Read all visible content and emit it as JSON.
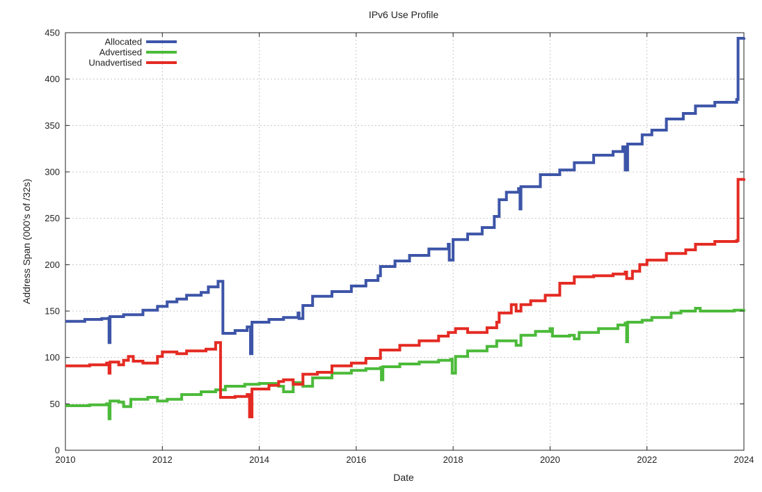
{
  "chart_data": {
    "type": "line",
    "title": "IPv6 Use Profile",
    "xlabel": "Date",
    "ylabel": "Address Span (000's of /32s)",
    "xlim": [
      2010,
      2024
    ],
    "ylim": [
      0,
      450
    ],
    "x_ticks": [
      "2010",
      "2012",
      "2014",
      "2016",
      "2018",
      "2020",
      "2022",
      "2024"
    ],
    "y_ticks": [
      "0",
      "50",
      "100",
      "150",
      "200",
      "250",
      "300",
      "350",
      "400",
      "450"
    ],
    "grid": true,
    "legend_position": "top-left",
    "series": [
      {
        "name": "Allocated",
        "color": "#3d55a8",
        "points": [
          [
            2010.0,
            139
          ],
          [
            2010.4,
            141
          ],
          [
            2010.75,
            142
          ],
          [
            2010.9,
            144
          ],
          [
            2010.9,
            116
          ],
          [
            2010.92,
            144
          ],
          [
            2011.2,
            146
          ],
          [
            2011.6,
            151
          ],
          [
            2011.9,
            155
          ],
          [
            2012.1,
            160
          ],
          [
            2012.3,
            163
          ],
          [
            2012.5,
            167
          ],
          [
            2012.8,
            170
          ],
          [
            2012.95,
            176
          ],
          [
            2013.15,
            182
          ],
          [
            2013.25,
            126
          ],
          [
            2013.5,
            129
          ],
          [
            2013.75,
            133
          ],
          [
            2013.82,
            104
          ],
          [
            2013.85,
            138
          ],
          [
            2014.2,
            141
          ],
          [
            2014.5,
            143
          ],
          [
            2014.8,
            148
          ],
          [
            2014.82,
            142
          ],
          [
            2014.9,
            156
          ],
          [
            2015.1,
            166
          ],
          [
            2015.5,
            171
          ],
          [
            2015.9,
            177
          ],
          [
            2016.2,
            183
          ],
          [
            2016.45,
            188
          ],
          [
            2016.5,
            198
          ],
          [
            2016.8,
            204
          ],
          [
            2017.1,
            210
          ],
          [
            2017.5,
            217
          ],
          [
            2017.9,
            222
          ],
          [
            2017.92,
            205
          ],
          [
            2018.0,
            227
          ],
          [
            2018.3,
            233
          ],
          [
            2018.6,
            240
          ],
          [
            2018.85,
            252
          ],
          [
            2018.95,
            270
          ],
          [
            2019.1,
            278
          ],
          [
            2019.35,
            282
          ],
          [
            2019.38,
            260
          ],
          [
            2019.4,
            284
          ],
          [
            2019.8,
            297
          ],
          [
            2020.2,
            302
          ],
          [
            2020.5,
            310
          ],
          [
            2020.9,
            318
          ],
          [
            2021.3,
            322
          ],
          [
            2021.5,
            327
          ],
          [
            2021.55,
            302
          ],
          [
            2021.6,
            330
          ],
          [
            2021.9,
            340
          ],
          [
            2022.1,
            345
          ],
          [
            2022.4,
            357
          ],
          [
            2022.75,
            363
          ],
          [
            2023.0,
            371
          ],
          [
            2023.4,
            375
          ],
          [
            2023.85,
            378
          ],
          [
            2023.88,
            444
          ],
          [
            2024.0,
            445
          ]
        ]
      },
      {
        "name": "Advertised",
        "color": "#4cba3a",
        "points": [
          [
            2010.0,
            48
          ],
          [
            2010.5,
            49
          ],
          [
            2010.85,
            50
          ],
          [
            2010.9,
            34
          ],
          [
            2010.92,
            53
          ],
          [
            2011.1,
            52
          ],
          [
            2011.2,
            47
          ],
          [
            2011.35,
            55
          ],
          [
            2011.7,
            57
          ],
          [
            2011.9,
            53
          ],
          [
            2012.1,
            55
          ],
          [
            2012.4,
            60
          ],
          [
            2012.8,
            63
          ],
          [
            2013.1,
            65
          ],
          [
            2013.3,
            69
          ],
          [
            2013.7,
            71
          ],
          [
            2014.0,
            72
          ],
          [
            2014.4,
            69
          ],
          [
            2014.5,
            63
          ],
          [
            2014.7,
            73
          ],
          [
            2014.9,
            69
          ],
          [
            2015.1,
            78
          ],
          [
            2015.5,
            83
          ],
          [
            2015.9,
            86
          ],
          [
            2016.2,
            88
          ],
          [
            2016.5,
            89
          ],
          [
            2016.52,
            76
          ],
          [
            2016.55,
            90
          ],
          [
            2016.9,
            93
          ],
          [
            2017.3,
            95
          ],
          [
            2017.7,
            97
          ],
          [
            2017.95,
            98
          ],
          [
            2017.98,
            83
          ],
          [
            2018.05,
            101
          ],
          [
            2018.3,
            107
          ],
          [
            2018.7,
            112
          ],
          [
            2018.9,
            118
          ],
          [
            2019.1,
            118
          ],
          [
            2019.3,
            113
          ],
          [
            2019.4,
            124
          ],
          [
            2019.7,
            128
          ],
          [
            2020.0,
            131
          ],
          [
            2020.05,
            123
          ],
          [
            2020.4,
            124
          ],
          [
            2020.5,
            120
          ],
          [
            2020.6,
            127
          ],
          [
            2021.0,
            131
          ],
          [
            2021.4,
            135
          ],
          [
            2021.55,
            137
          ],
          [
            2021.58,
            117
          ],
          [
            2021.6,
            138
          ],
          [
            2021.9,
            140
          ],
          [
            2022.1,
            143
          ],
          [
            2022.5,
            148
          ],
          [
            2022.7,
            150
          ],
          [
            2023.0,
            153
          ],
          [
            2023.1,
            150
          ],
          [
            2023.4,
            150
          ],
          [
            2023.8,
            151
          ],
          [
            2024.0,
            152
          ]
        ]
      },
      {
        "name": "Unadvertised",
        "color": "#e42b23",
        "points": [
          [
            2010.0,
            91
          ],
          [
            2010.5,
            92
          ],
          [
            2010.85,
            94
          ],
          [
            2010.9,
            83
          ],
          [
            2010.92,
            95
          ],
          [
            2011.1,
            92
          ],
          [
            2011.2,
            97
          ],
          [
            2011.3,
            101
          ],
          [
            2011.4,
            96
          ],
          [
            2011.6,
            94
          ],
          [
            2011.9,
            101
          ],
          [
            2012.0,
            106
          ],
          [
            2012.3,
            104
          ],
          [
            2012.5,
            107
          ],
          [
            2012.9,
            109
          ],
          [
            2013.1,
            116
          ],
          [
            2013.2,
            57
          ],
          [
            2013.5,
            58
          ],
          [
            2013.75,
            60
          ],
          [
            2013.8,
            36
          ],
          [
            2013.85,
            66
          ],
          [
            2014.2,
            70
          ],
          [
            2014.4,
            74
          ],
          [
            2014.5,
            76
          ],
          [
            2014.7,
            71
          ],
          [
            2014.9,
            82
          ],
          [
            2015.2,
            84
          ],
          [
            2015.5,
            91
          ],
          [
            2015.9,
            94
          ],
          [
            2016.2,
            99
          ],
          [
            2016.5,
            108
          ],
          [
            2016.9,
            113
          ],
          [
            2017.3,
            118
          ],
          [
            2017.7,
            123
          ],
          [
            2017.9,
            127
          ],
          [
            2018.05,
            131
          ],
          [
            2018.3,
            127
          ],
          [
            2018.7,
            132
          ],
          [
            2018.9,
            138
          ],
          [
            2018.95,
            148
          ],
          [
            2019.2,
            157
          ],
          [
            2019.3,
            150
          ],
          [
            2019.4,
            157
          ],
          [
            2019.6,
            161
          ],
          [
            2019.9,
            167
          ],
          [
            2020.2,
            180
          ],
          [
            2020.5,
            187
          ],
          [
            2020.9,
            188
          ],
          [
            2021.3,
            190
          ],
          [
            2021.55,
            192
          ],
          [
            2021.58,
            185
          ],
          [
            2021.7,
            193
          ],
          [
            2021.85,
            200
          ],
          [
            2022.0,
            205
          ],
          [
            2022.4,
            212
          ],
          [
            2022.8,
            216
          ],
          [
            2023.0,
            222
          ],
          [
            2023.4,
            225
          ],
          [
            2023.85,
            226
          ],
          [
            2023.88,
            292
          ],
          [
            2024.0,
            293
          ]
        ]
      }
    ]
  }
}
